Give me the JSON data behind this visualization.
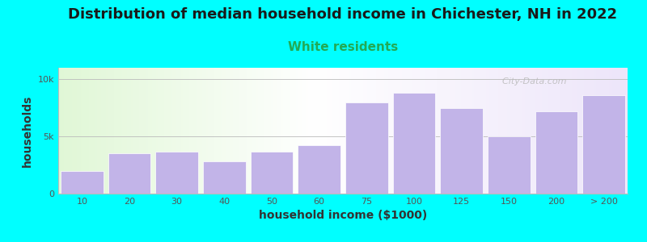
{
  "title": "Distribution of median household income in Chichester, NH in 2022",
  "subtitle": "White residents",
  "xlabel": "household income ($1000)",
  "ylabel": "households",
  "background_color": "#00FFFF",
  "bar_color": "#C2B4E8",
  "categories": [
    "10",
    "20",
    "30",
    "40",
    "50",
    "60",
    "75",
    "100",
    "125",
    "150",
    "200",
    "> 200"
  ],
  "values": [
    2000,
    3500,
    3700,
    2800,
    3700,
    4200,
    8000,
    8800,
    7500,
    5000,
    7200,
    8600
  ],
  "ylim": [
    0,
    11000
  ],
  "ytick_positions": [
    0,
    5000,
    10000
  ],
  "ytick_labels": [
    "0",
    "5k",
    "10k"
  ],
  "watermark": "  City-Data.com",
  "title_fontsize": 13,
  "subtitle_fontsize": 11,
  "subtitle_color": "#22AA55",
  "axis_label_fontsize": 10,
  "tick_fontsize": 8,
  "gradient_green": [
    0.88,
    0.97,
    0.84
  ],
  "gradient_white": [
    1.0,
    1.0,
    1.0
  ],
  "gradient_lavender": [
    0.93,
    0.9,
    0.98
  ]
}
